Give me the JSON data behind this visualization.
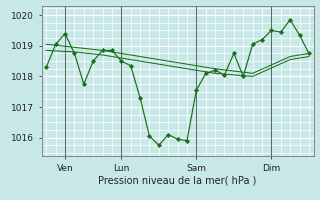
{
  "background_color": "#c8e8e8",
  "line_color": "#1a6e1a",
  "grid_color": "#ffffff",
  "xlabel": "Pression niveau de la mer( hPa )",
  "ylim": [
    1015.4,
    1020.3
  ],
  "yticks": [
    1016,
    1017,
    1018,
    1019,
    1020
  ],
  "xlim": [
    -0.5,
    28.5
  ],
  "xtick_positions": [
    2,
    8,
    16,
    24
  ],
  "xtick_labels": [
    "Ven",
    "Lun",
    "Sam",
    "Dim"
  ],
  "vlines": [
    2,
    8,
    16,
    24
  ],
  "main_x": [
    0,
    1,
    2,
    3,
    4,
    5,
    6,
    7,
    8,
    9,
    10,
    11,
    12,
    13,
    14,
    15,
    16,
    17,
    18,
    19,
    20,
    21,
    22,
    23,
    24,
    25,
    26,
    27,
    28
  ],
  "main_y": [
    1018.3,
    1019.05,
    1019.4,
    1018.75,
    1017.75,
    1018.5,
    1018.85,
    1018.85,
    1018.5,
    1018.35,
    1017.3,
    1016.05,
    1015.75,
    1016.1,
    1015.95,
    1015.9,
    1017.55,
    1018.1,
    1018.2,
    1018.05,
    1018.75,
    1018.0,
    1019.05,
    1019.2,
    1019.5,
    1019.45,
    1019.85,
    1019.35,
    1018.75
  ],
  "trend1_x": [
    0,
    3,
    6,
    10,
    14,
    18,
    22,
    26,
    28
  ],
  "trend1_y": [
    1019.05,
    1018.95,
    1018.85,
    1018.65,
    1018.45,
    1018.25,
    1018.1,
    1018.65,
    1018.75
  ],
  "trend2_x": [
    0,
    3,
    6,
    10,
    14,
    18,
    22,
    26,
    28
  ],
  "trend2_y": [
    1018.85,
    1018.8,
    1018.7,
    1018.5,
    1018.3,
    1018.1,
    1018.0,
    1018.55,
    1018.65
  ],
  "minor_yticks_per_major": 4,
  "minor_xticks_per_major": 4
}
